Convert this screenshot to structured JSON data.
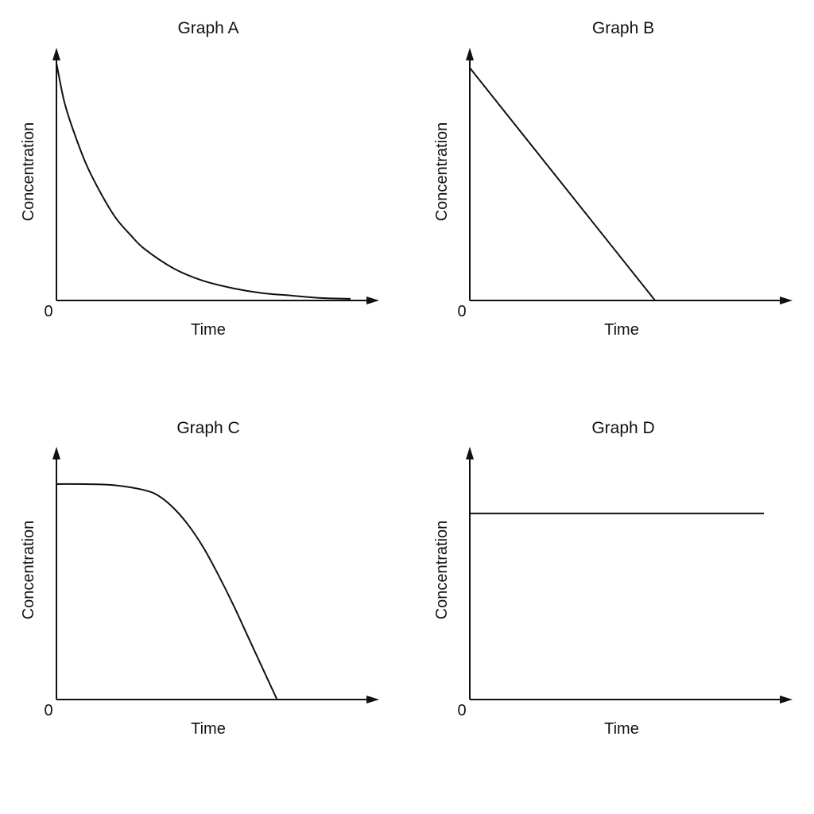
{
  "chart_data": [
    {
      "type": "line",
      "title": "Graph A",
      "xlabel": "Time",
      "ylabel": "Concentration",
      "origin_label": "0",
      "grid": false,
      "legend": "none",
      "xlim": [
        0,
        10
      ],
      "ylim": [
        0,
        10
      ],
      "series": [
        {
          "values": [
            [
              0.0,
              9.7
            ],
            [
              0.25,
              8.2
            ],
            [
              0.5,
              7.2
            ],
            [
              1.0,
              5.6
            ],
            [
              1.5,
              4.4
            ],
            [
              2.0,
              3.4
            ],
            [
              2.5,
              2.7
            ],
            [
              3.0,
              2.1
            ],
            [
              4.0,
              1.3
            ],
            [
              5.0,
              0.8
            ],
            [
              6.0,
              0.5
            ],
            [
              7.0,
              0.3
            ],
            [
              8.0,
              0.2
            ],
            [
              9.0,
              0.1
            ],
            [
              10.0,
              0.07
            ]
          ]
        }
      ]
    },
    {
      "type": "line",
      "title": "Graph B",
      "xlabel": "Time",
      "ylabel": "Concentration",
      "origin_label": "0",
      "grid": false,
      "legend": "none",
      "xlim": [
        0,
        10
      ],
      "ylim": [
        0,
        10
      ],
      "series": [
        {
          "values": [
            [
              0.0,
              9.5
            ],
            [
              6.3,
              0.0
            ]
          ]
        }
      ]
    },
    {
      "type": "line",
      "title": "Graph C",
      "xlabel": "Time",
      "ylabel": "Concentration",
      "origin_label": "0",
      "grid": false,
      "legend": "none",
      "xlim": [
        0,
        10
      ],
      "ylim": [
        0,
        10
      ],
      "series": [
        {
          "values": [
            [
              0.0,
              8.8
            ],
            [
              1.0,
              8.8
            ],
            [
              2.0,
              8.75
            ],
            [
              3.0,
              8.55
            ],
            [
              3.5,
              8.3
            ],
            [
              4.0,
              7.8
            ],
            [
              4.5,
              7.1
            ],
            [
              5.0,
              6.2
            ],
            [
              5.5,
              5.1
            ],
            [
              6.0,
              3.9
            ],
            [
              6.5,
              2.6
            ],
            [
              7.0,
              1.3
            ],
            [
              7.5,
              0.0
            ]
          ]
        }
      ]
    },
    {
      "type": "line",
      "title": "Graph D",
      "xlabel": "Time",
      "ylabel": "Concentration",
      "origin_label": "0",
      "grid": false,
      "legend": "none",
      "xlim": [
        0,
        10
      ],
      "ylim": [
        0,
        10
      ],
      "series": [
        {
          "values": [
            [
              0.0,
              7.6
            ],
            [
              10.0,
              7.6
            ]
          ]
        }
      ]
    }
  ]
}
